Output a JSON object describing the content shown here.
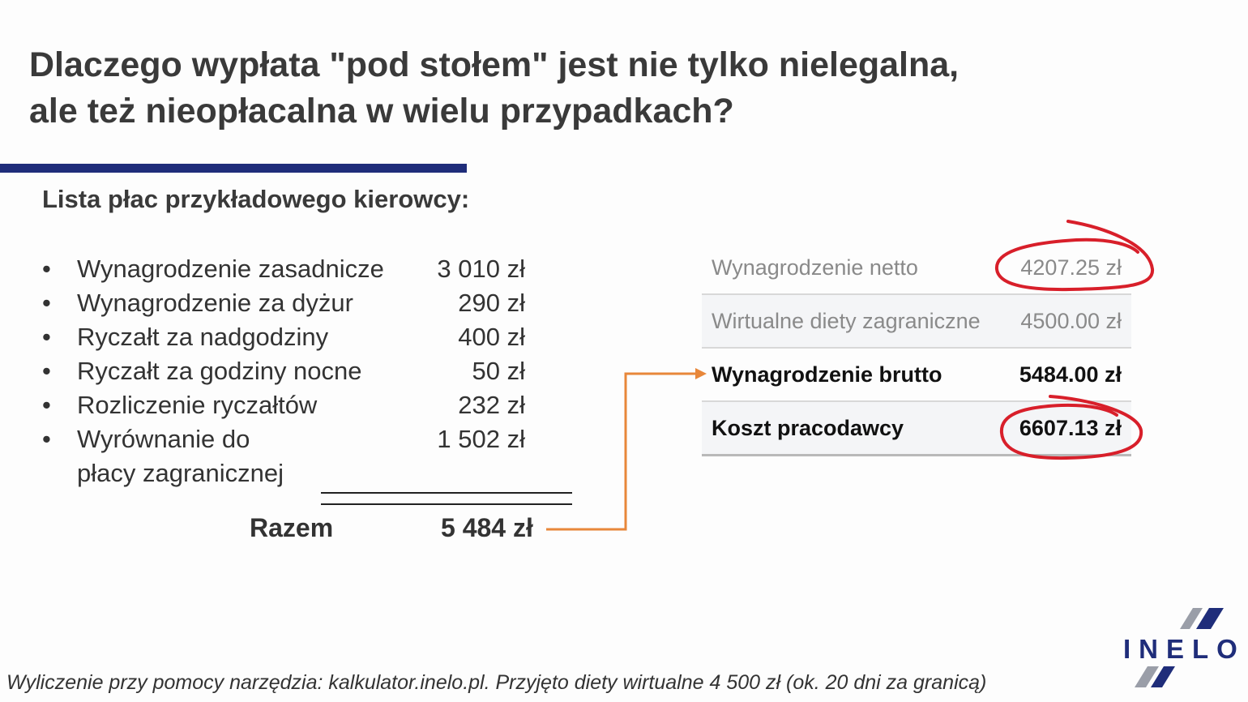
{
  "slide": {
    "title_line1": "Dlaczego wypłata \"pod stołem\" jest nie tylko nielegalna,",
    "title_line2": "ale też nieopłacalna w wielu przypadkach?",
    "subtitle": "Lista płac przykładowego kierowcy:",
    "accent_color": "#1f2d7a",
    "arrow_color": "#e8873a",
    "circle_color": "#d81f2a"
  },
  "pay_items": [
    {
      "bullet": "•",
      "label": "Wynagrodzenie zasadnicze",
      "amount": "3 010 zł"
    },
    {
      "bullet": "•",
      "label": "Wynagrodzenie za dyżur",
      "amount": "290 zł"
    },
    {
      "bullet": "•",
      "label": "Ryczałt za nadgodziny",
      "amount": "400 zł"
    },
    {
      "bullet": "•",
      "label": "Ryczałt za godziny nocne",
      "amount": "50 zł"
    },
    {
      "bullet": "•",
      "label": "Rozliczenie ryczałtów",
      "amount": "232 zł"
    },
    {
      "bullet": "•",
      "label_line1": "Wyrównanie do",
      "label_line2": "płacy zagranicznej",
      "amount": "1 502 zł"
    }
  ],
  "total": {
    "label": "Razem",
    "value": "5 484 zł"
  },
  "calculator": [
    {
      "label": "Wynagrodzenie netto",
      "value": "4207.25 zł"
    },
    {
      "label": "Wirtualne diety zagraniczne",
      "value": "4500.00 zł"
    },
    {
      "label": "Wynagrodzenie brutto",
      "value": "5484.00 zł"
    },
    {
      "label": "Koszt pracodawcy",
      "value": "6607.13 zł"
    }
  ],
  "logo": {
    "text": "INELO"
  },
  "footer": "Wyliczenie przy pomocy narzędzia: kalkulator.inelo.pl. Przyjęto diety wirtualne 4 500 zł (ok. 20 dni za granicą)"
}
